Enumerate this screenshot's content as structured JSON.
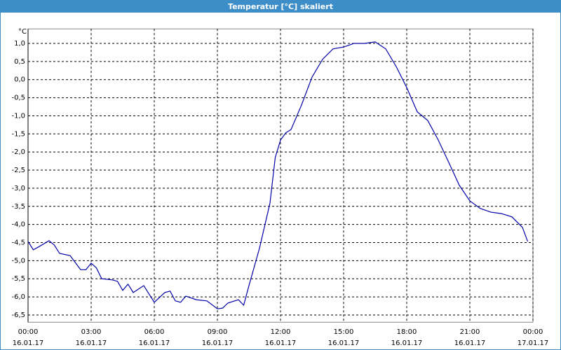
{
  "chart_data": {
    "type": "line",
    "title": "Temperatur [°C] skaliert",
    "y_label": "°C",
    "x": [
      0,
      0.25,
      0.5,
      1,
      1.25,
      1.5,
      2,
      2.5,
      2.75,
      3,
      3.25,
      3.5,
      4,
      4.25,
      4.5,
      4.75,
      5,
      5.5,
      5.75,
      6,
      6.5,
      6.75,
      7,
      7.25,
      7.5,
      8,
      8.5,
      9,
      9.25,
      9.5,
      10,
      10.25,
      10.5,
      11,
      11.5,
      11.75,
      12,
      12.25,
      12.5,
      13,
      13.5,
      14,
      14.5,
      15,
      15.5,
      16,
      16.5,
      17,
      17.5,
      18,
      18.5,
      19,
      19.5,
      20,
      20.5,
      21,
      21.5,
      22,
      22.5,
      23,
      23.5,
      23.75
    ],
    "series": [
      {
        "name": "Temperatur",
        "color": "#0000a8",
        "values": [
          -4.47,
          -4.7,
          -4.62,
          -4.45,
          -4.57,
          -4.8,
          -4.86,
          -5.25,
          -5.25,
          -5.07,
          -5.2,
          -5.5,
          -5.53,
          -5.57,
          -5.82,
          -5.65,
          -5.88,
          -5.69,
          -5.92,
          -6.15,
          -5.88,
          -5.84,
          -6.11,
          -6.15,
          -5.98,
          -6.08,
          -6.11,
          -6.33,
          -6.31,
          -6.17,
          -6.08,
          -6.23,
          -5.69,
          -4.66,
          -3.41,
          -2.15,
          -1.67,
          -1.47,
          -1.38,
          -0.7,
          0.07,
          0.56,
          0.85,
          0.9,
          1.0,
          1.0,
          1.04,
          0.85,
          0.36,
          -0.22,
          -0.89,
          -1.13,
          -1.67,
          -2.29,
          -2.92,
          -3.35,
          -3.56,
          -3.66,
          -3.7,
          -3.79,
          -4.08,
          -4.47
        ]
      }
    ],
    "xlim": [
      0,
      24
    ],
    "ylim": [
      -6.7,
      1.4
    ],
    "xticks": [
      {
        "value": 0,
        "label": "00:00"
      },
      {
        "value": 3,
        "label": "03:00"
      },
      {
        "value": 6,
        "label": "06:00"
      },
      {
        "value": 9,
        "label": "09:00"
      },
      {
        "value": 12,
        "label": "12:00"
      },
      {
        "value": 15,
        "label": "15:00"
      },
      {
        "value": 18,
        "label": "18:00"
      },
      {
        "value": 21,
        "label": "21:00"
      },
      {
        "value": 24,
        "label": "00:00"
      }
    ],
    "xtick_dates": [
      "16.01.17",
      "16.01.17",
      "16.01.17",
      "16.01.17",
      "16.01.17",
      "16.01.17",
      "16.01.17",
      "16.01.17",
      "17.01.17"
    ],
    "yticks": [
      {
        "value": 1,
        "label": "1,0"
      },
      {
        "value": 0.5,
        "label": "0,5"
      },
      {
        "value": 0,
        "label": "0,0"
      },
      {
        "value": -0.5,
        "label": "-0,5"
      },
      {
        "value": -1,
        "label": "-1,0"
      },
      {
        "value": -1.5,
        "label": "-1,5"
      },
      {
        "value": -2,
        "label": "-2,0"
      },
      {
        "value": -2.5,
        "label": "-2,5"
      },
      {
        "value": -3,
        "label": "-3,0"
      },
      {
        "value": -3.5,
        "label": "-3,5"
      },
      {
        "value": -4,
        "label": "-4,0"
      },
      {
        "value": -4.5,
        "label": "-4,5"
      },
      {
        "value": -5,
        "label": "-5,0"
      },
      {
        "value": -5.5,
        "label": "-5,5"
      },
      {
        "value": -6,
        "label": "-6,0"
      },
      {
        "value": -6.5,
        "label": "-6,5"
      }
    ],
    "grid": true
  }
}
